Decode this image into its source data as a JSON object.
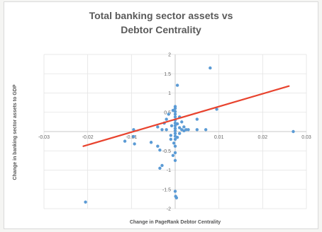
{
  "chart_data": {
    "type": "scatter",
    "title_line1": "Total banking sector assets vs",
    "title_line2": "Debtor Centrality",
    "xlabel": "Change in PageRank Debtor Centrality",
    "ylabel": "Change in banking  sector assets to GDP",
    "xlim": [
      -0.03,
      0.03
    ],
    "ylim": [
      -2,
      2
    ],
    "xticks": [
      -0.03,
      -0.02,
      -0.01,
      0,
      0.01,
      0.02,
      0.03
    ],
    "xtick_labels": [
      "-0.03",
      "-0.02",
      "-0.01",
      "",
      "0.01",
      "0.02",
      "0.03"
    ],
    "yticks": [
      -2,
      -1.5,
      -1,
      -0.5,
      0,
      0.5,
      1,
      1.5,
      2
    ],
    "ytick_labels": [
      "-2",
      "-1.5",
      "-1",
      "-0.5",
      "",
      "0.5",
      "1",
      "1.5",
      "2"
    ],
    "grid": true,
    "colors": {
      "points": "#5b9bd5",
      "trendline": "#e8432e",
      "grid": "#e3e3e3",
      "title": "#5a5a5a"
    },
    "trendline": {
      "x": [
        -0.021,
        0.026
      ],
      "y": [
        -0.38,
        1.18
      ]
    },
    "points": [
      {
        "x": -0.0205,
        "y": -1.83
      },
      {
        "x": -0.0095,
        "y": 0.05
      },
      {
        "x": -0.0095,
        "y": -0.13
      },
      {
        "x": -0.0093,
        "y": -0.32
      },
      {
        "x": -0.0115,
        "y": -0.25
      },
      {
        "x": -0.0055,
        "y": -0.28
      },
      {
        "x": -0.004,
        "y": -0.38
      },
      {
        "x": -0.0035,
        "y": -0.48
      },
      {
        "x": -0.0035,
        "y": -0.95
      },
      {
        "x": -0.003,
        "y": -0.88
      },
      {
        "x": -0.004,
        "y": 0.12
      },
      {
        "x": -0.003,
        "y": 0.05
      },
      {
        "x": -0.0025,
        "y": 0.22
      },
      {
        "x": -0.002,
        "y": 0.32
      },
      {
        "x": -0.002,
        "y": 0.05
      },
      {
        "x": -0.0015,
        "y": 0.45
      },
      {
        "x": -0.001,
        "y": -0.1
      },
      {
        "x": -0.001,
        "y": -0.2
      },
      {
        "x": -0.0008,
        "y": 0.15
      },
      {
        "x": -0.0005,
        "y": 0.55
      },
      {
        "x": -0.0005,
        "y": -0.62
      },
      {
        "x": -0.0003,
        "y": -0.3
      },
      {
        "x": 0,
        "y": 0.65
      },
      {
        "x": 0,
        "y": 0.6
      },
      {
        "x": 0,
        "y": 0.52
      },
      {
        "x": 0,
        "y": 0.45
      },
      {
        "x": 0,
        "y": 0.38
      },
      {
        "x": 0,
        "y": 0.3
      },
      {
        "x": 0,
        "y": 0.22
      },
      {
        "x": 0,
        "y": 0.15
      },
      {
        "x": 0,
        "y": 0.08
      },
      {
        "x": 0,
        "y": 0.02
      },
      {
        "x": 0,
        "y": -0.05
      },
      {
        "x": 0,
        "y": -0.12
      },
      {
        "x": 0,
        "y": -0.2
      },
      {
        "x": 0,
        "y": -0.38
      },
      {
        "x": 0,
        "y": -0.55
      },
      {
        "x": 0,
        "y": -0.75
      },
      {
        "x": 0,
        "y": -1.55
      },
      {
        "x": 0.0001,
        "y": -1.68
      },
      {
        "x": 0.0003,
        "y": -1.72
      },
      {
        "x": 0.0005,
        "y": 1.2
      },
      {
        "x": 0.0005,
        "y": 0.2
      },
      {
        "x": 0.0005,
        "y": -0.15
      },
      {
        "x": 0.001,
        "y": 0.38
      },
      {
        "x": 0.001,
        "y": 0.1
      },
      {
        "x": 0.001,
        "y": -0.05
      },
      {
        "x": 0.0015,
        "y": 0.25
      },
      {
        "x": 0.0015,
        "y": 0.05
      },
      {
        "x": 0.002,
        "y": 0.12
      },
      {
        "x": 0.002,
        "y": 0.02
      },
      {
        "x": 0.0025,
        "y": 0.05
      },
      {
        "x": 0.003,
        "y": 0.05
      },
      {
        "x": 0.005,
        "y": 0.32
      },
      {
        "x": 0.005,
        "y": 0.05
      },
      {
        "x": 0.007,
        "y": 0.05
      },
      {
        "x": 0.0095,
        "y": 0.58
      },
      {
        "x": 0.008,
        "y": 1.65
      },
      {
        "x": 0.027,
        "y": 0.0
      }
    ]
  }
}
